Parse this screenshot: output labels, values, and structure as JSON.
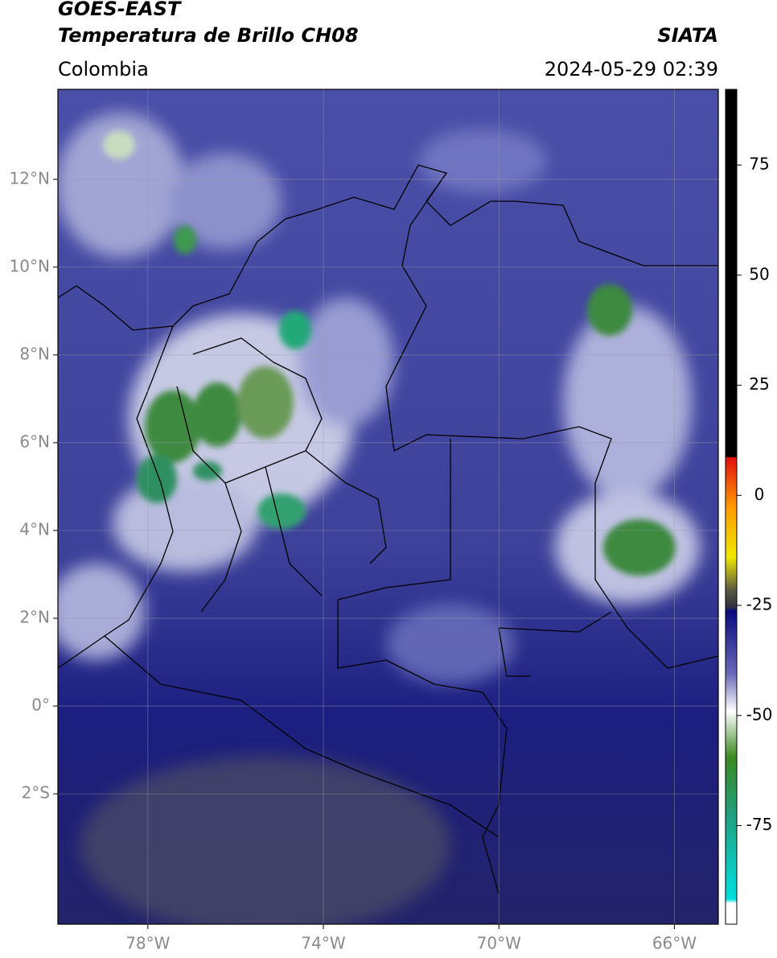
{
  "header": {
    "title_line1": "GOES-EAST",
    "title_line2": "Temperatura de Brillo CH08",
    "source": "SIATA",
    "region": "Colombia",
    "timestamp": "2024-05-29 02:39"
  },
  "map": {
    "xlim": [
      -80.05,
      -65
    ],
    "ylim": [
      -4.97,
      14.05
    ],
    "lon_ticks": [
      {
        "value": -78,
        "label": "78°W"
      },
      {
        "value": -74,
        "label": "74°W"
      },
      {
        "value": -70,
        "label": "70°W"
      },
      {
        "value": -66,
        "label": "66°W"
      }
    ],
    "lat_ticks": [
      {
        "value": 12,
        "label": "12°N"
      },
      {
        "value": 10,
        "label": "10°N"
      },
      {
        "value": 8,
        "label": "8°N"
      },
      {
        "value": 6,
        "label": "6°N"
      },
      {
        "value": 4,
        "label": "4°N"
      },
      {
        "value": 2,
        "label": "2°N"
      },
      {
        "value": 0,
        "label": "0°"
      },
      {
        "value": -2,
        "label": "2°S"
      }
    ]
  },
  "colorbar": {
    "lim": [
      -97.4,
      92.2
    ],
    "ticks": [
      75,
      50,
      25,
      0,
      -25,
      -50,
      -75
    ]
  }
}
